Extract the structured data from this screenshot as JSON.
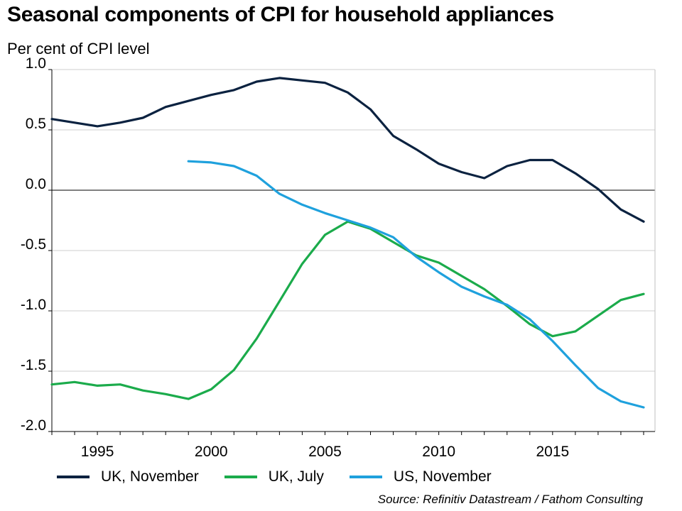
{
  "title": "Seasonal components of CPI for household appliances",
  "subtitle": "Per cent of CPI level",
  "source": "Source: Refinitiv Datastream / Fathom Consulting",
  "chart_data": {
    "type": "line",
    "ylim": [
      -2.0,
      1.0
    ],
    "xlim": [
      1993,
      2019.5
    ],
    "yticks": [
      1.0,
      0.5,
      0.0,
      -0.5,
      -1.0,
      -1.5,
      -2.0
    ],
    "ytick_labels": [
      "1.0",
      "0.5",
      "0.0",
      "-0.5",
      "-1.0",
      "-1.5",
      "-2.0"
    ],
    "xtick_labels": [
      1995,
      2000,
      2005,
      2010,
      2015
    ],
    "grid": "horizontal",
    "legend_position": "bottom",
    "series": [
      {
        "name": "UK, November",
        "color": "#0b2240",
        "x": [
          1993,
          1994,
          1995,
          1996,
          1997,
          1998,
          1999,
          2000,
          2001,
          2002,
          2003,
          2004,
          2005,
          2006,
          2007,
          2008,
          2009,
          2010,
          2011,
          2012,
          2013,
          2014,
          2015,
          2016,
          2017,
          2018,
          2019
        ],
        "values": [
          0.59,
          0.56,
          0.53,
          0.56,
          0.6,
          0.69,
          0.74,
          0.79,
          0.83,
          0.9,
          0.93,
          0.91,
          0.89,
          0.81,
          0.67,
          0.45,
          0.34,
          0.22,
          0.15,
          0.1,
          0.2,
          0.25,
          0.25,
          0.14,
          0.01,
          -0.16,
          -0.26
        ]
      },
      {
        "name": "UK, July",
        "color": "#1bab4b",
        "x": [
          1993,
          1994,
          1995,
          1996,
          1997,
          1998,
          1999,
          2000,
          2001,
          2002,
          2003,
          2004,
          2005,
          2006,
          2007,
          2008,
          2009,
          2010,
          2011,
          2012,
          2013,
          2014,
          2015,
          2016,
          2017,
          2018,
          2019
        ],
        "values": [
          -1.61,
          -1.59,
          -1.62,
          -1.61,
          -1.66,
          -1.69,
          -1.73,
          -1.65,
          -1.49,
          -1.23,
          -0.92,
          -0.61,
          -0.37,
          -0.26,
          -0.32,
          -0.43,
          -0.54,
          -0.6,
          -0.71,
          -0.82,
          -0.96,
          -1.11,
          -1.21,
          -1.17,
          -1.04,
          -0.91,
          -0.86
        ]
      },
      {
        "name": "US, November",
        "color": "#1fa1dd",
        "x": [
          1999,
          2000,
          2001,
          2002,
          2003,
          2004,
          2005,
          2006,
          2007,
          2008,
          2009,
          2010,
          2011,
          2012,
          2013,
          2014,
          2015,
          2016,
          2017,
          2018,
          2019
        ],
        "values": [
          0.24,
          0.23,
          0.2,
          0.12,
          -0.03,
          -0.12,
          -0.19,
          -0.25,
          -0.31,
          -0.39,
          -0.55,
          -0.68,
          -0.8,
          -0.88,
          -0.95,
          -1.07,
          -1.25,
          -1.45,
          -1.64,
          -1.75,
          -1.8
        ]
      }
    ]
  }
}
